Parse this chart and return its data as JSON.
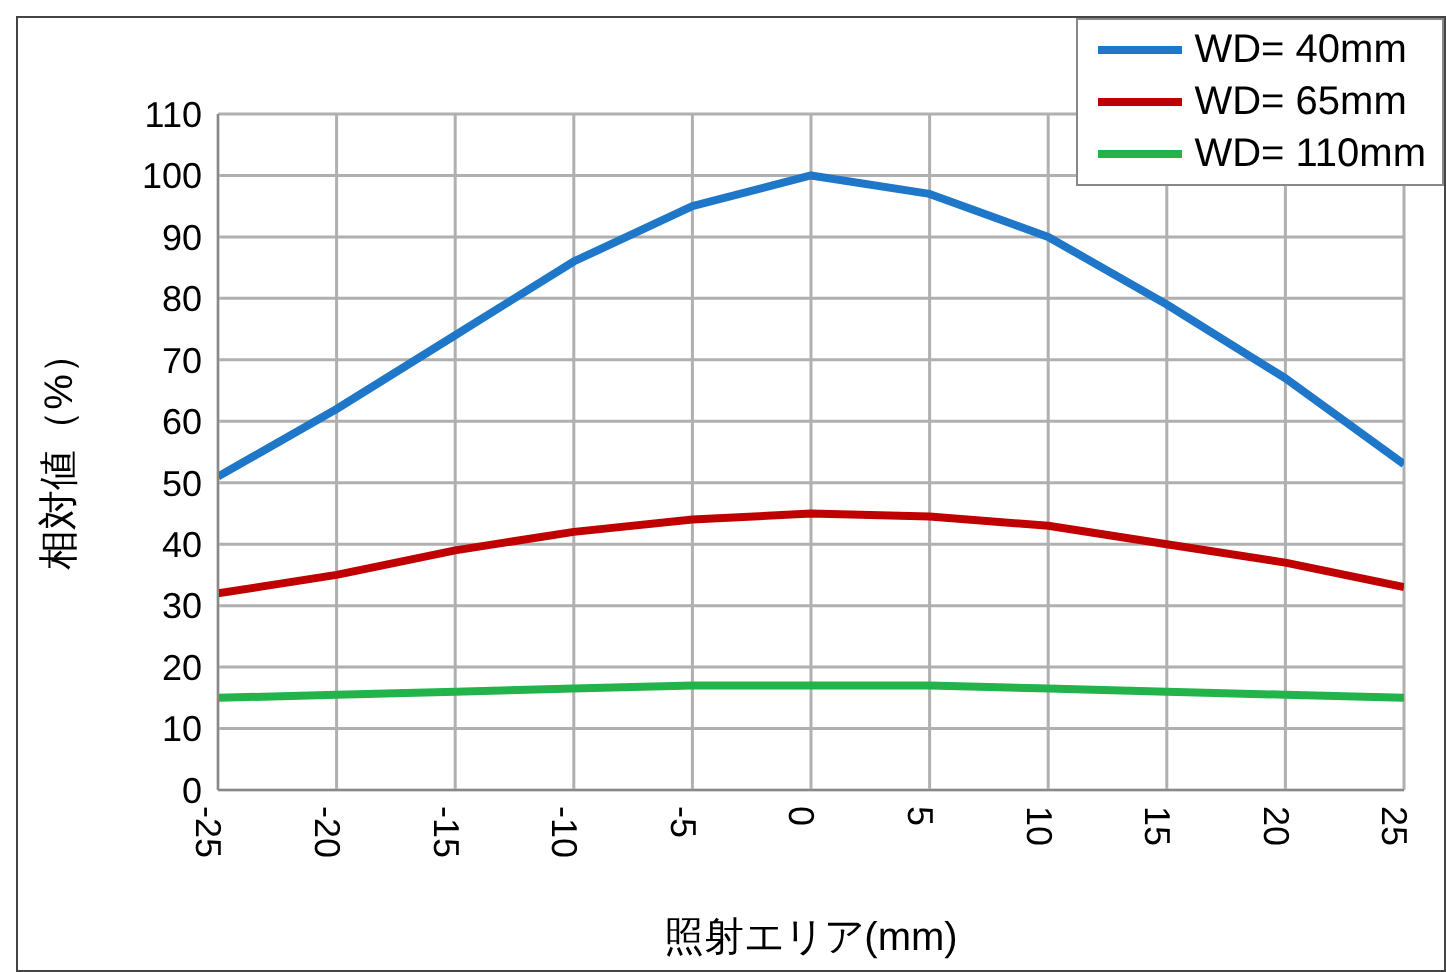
{
  "chart_data": {
    "type": "line",
    "xlabel": "照射エリア(mm)",
    "ylabel": "相対値（%）",
    "x": [
      -25,
      -20,
      -15,
      -10,
      -5,
      0,
      5,
      10,
      15,
      20,
      25
    ],
    "series": [
      {
        "name": "WD= 40mm",
        "color": "#1f77c9",
        "values": [
          51,
          62,
          74,
          86,
          95,
          100,
          97,
          90,
          79,
          67,
          53
        ]
      },
      {
        "name": "WD= 65mm",
        "color": "#c00000",
        "values": [
          32,
          35,
          39,
          42,
          44,
          45,
          44.5,
          43,
          40,
          37,
          33
        ]
      },
      {
        "name": "WD= 110mm",
        "color": "#22b34a",
        "values": [
          15,
          15.5,
          16,
          16.5,
          17,
          17,
          17,
          16.5,
          16,
          15.5,
          15
        ]
      }
    ],
    "xlim": [
      -25,
      25
    ],
    "xticks": [
      -25,
      -20,
      -15,
      -10,
      -5,
      0,
      5,
      10,
      15,
      20,
      25
    ],
    "ylim": [
      0,
      110
    ],
    "yticks": [
      0,
      10,
      20,
      30,
      40,
      50,
      60,
      70,
      80,
      90,
      100,
      110
    ],
    "grid": true,
    "legend": "top right",
    "marker": "none",
    "line_style": "solid"
  }
}
